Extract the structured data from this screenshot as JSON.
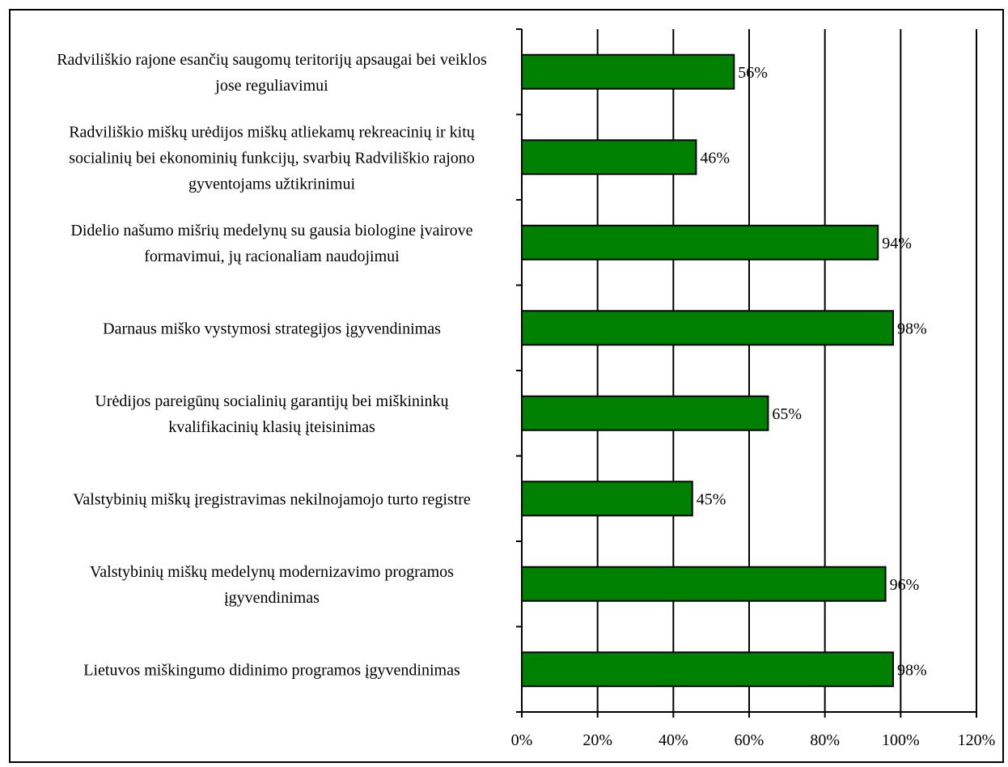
{
  "chart_data": {
    "type": "bar",
    "orientation": "horizontal",
    "title": "",
    "xlabel": "",
    "ylabel": "",
    "xlim": [
      0,
      120
    ],
    "ticks": [
      "0%",
      "20%",
      "40%",
      "60%",
      "80%",
      "100%",
      "120%"
    ],
    "grid": "vertical",
    "legend": "none",
    "bar_color": "#008000",
    "categories": [
      [
        "Radviliškio rajone esančių saugomų teritorijų apsaugai bei veiklos",
        "jose reguliavimui"
      ],
      [
        "Radviliškio miškų urėdijos miškų atliekamų rekreacinių ir kitų",
        "socialinių bei ekonominių funkcijų, svarbių Radviliškio rajono",
        "gyventojams užtikrinimui"
      ],
      [
        "Didelio našumo mišrių medelynų su gausia biologine įvairove",
        "formavimui, jų racionaliam naudojimui"
      ],
      [
        "Darnaus miško vystymosi strategijos įgyvendinimas"
      ],
      [
        "Urėdijos pareigūnų socialinių garantijų bei miškininkų",
        "kvalifikacinių klasių įteisinimas"
      ],
      [
        "Valstybinių miškų įregistravimas nekilnojamojo turto registre"
      ],
      [
        "Valstybinių miškų medelynų modernizavimo programos",
        "įgyvendinimas"
      ],
      [
        "Lietuvos miškingumo didinimo programos įgyvendinimas"
      ]
    ],
    "values": [
      56,
      46,
      94,
      98,
      65,
      45,
      96,
      98
    ],
    "data_labels": [
      "56%",
      "46%",
      "94%",
      "98%",
      "65%",
      "45%",
      "96%",
      "98%"
    ]
  }
}
